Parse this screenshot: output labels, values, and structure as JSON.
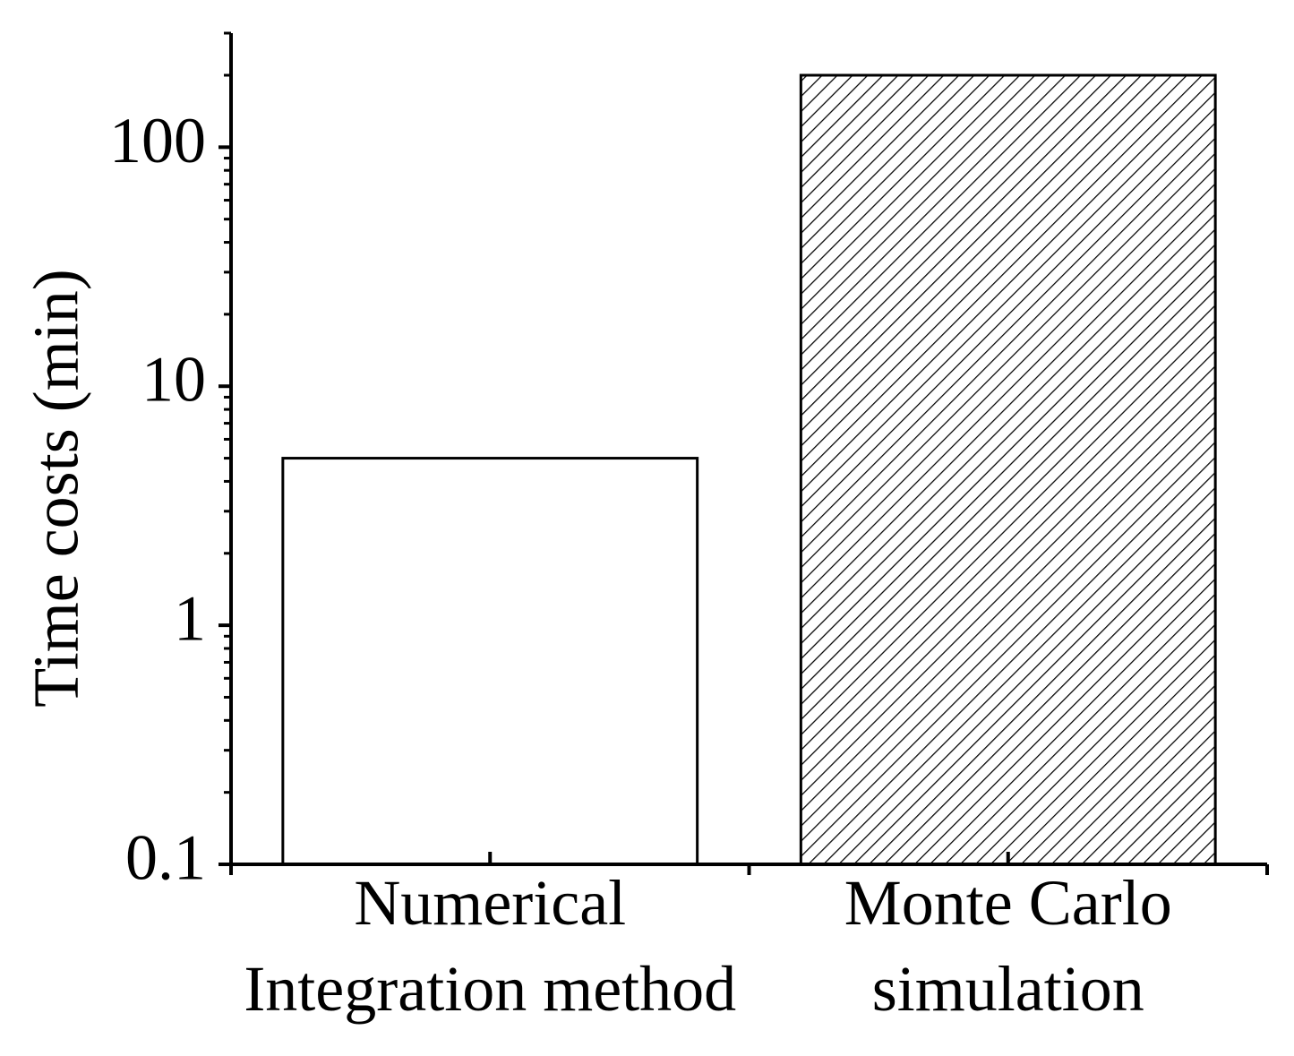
{
  "chart_data": {
    "type": "bar",
    "y_label": "Time costs (min)",
    "categories": [
      "Numerical\nIntegration method",
      "Monte Carlo\nsimulation"
    ],
    "values": [
      5,
      200
    ],
    "hatch": [
      false,
      true
    ],
    "color": "#ffffff",
    "log_y": true,
    "ylim": [
      0.1,
      300
    ],
    "yticks": [
      0.1,
      1,
      10,
      100
    ],
    "yticks_minor": [
      0.2,
      0.3,
      0.4,
      0.5,
      0.6,
      0.7,
      0.8,
      0.9,
      2,
      3,
      4,
      5,
      6,
      7,
      8,
      9,
      20,
      30,
      40,
      50,
      60,
      70,
      80,
      90,
      200,
      300
    ]
  }
}
